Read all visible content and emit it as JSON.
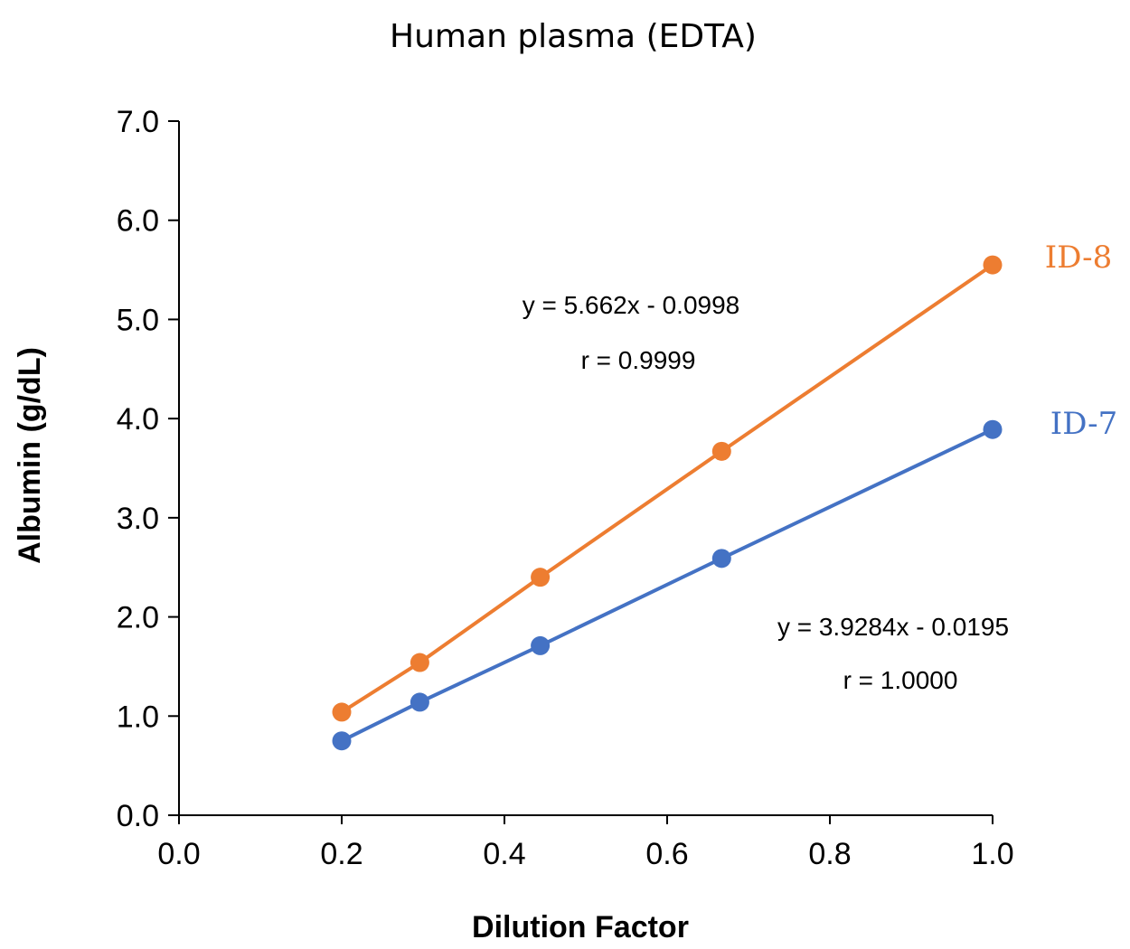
{
  "chart_data": {
    "type": "scatter",
    "title": "Human plasma (EDTA)",
    "xlabel": "Dilution Factor",
    "ylabel": "Albumin (g/dL)",
    "xlim": [
      0.0,
      1.0
    ],
    "ylim": [
      0.0,
      7.0
    ],
    "x_ticks": [
      "0.0",
      "0.2",
      "0.4",
      "0.6",
      "0.8",
      "1.0"
    ],
    "y_ticks": [
      "0.0",
      "1.0",
      "2.0",
      "3.0",
      "4.0",
      "5.0",
      "6.0",
      "7.0"
    ],
    "grid": false,
    "legend": "none",
    "series": [
      {
        "name": "ID-8",
        "color": "#ED7D31",
        "x": [
          0.2,
          0.296,
          0.444,
          0.667,
          1.0
        ],
        "y": [
          1.04,
          1.54,
          2.4,
          3.67,
          5.55
        ],
        "equation": "y = 5.662x - 0.0998",
        "r": "r = 0.9999"
      },
      {
        "name": "ID-7",
        "color": "#4472C4",
        "x": [
          0.2,
          0.296,
          0.444,
          0.667,
          1.0
        ],
        "y": [
          0.75,
          1.14,
          1.71,
          2.59,
          3.89
        ],
        "equation": "y = 3.9284x - 0.0195",
        "r": "r = 1.0000"
      }
    ]
  }
}
